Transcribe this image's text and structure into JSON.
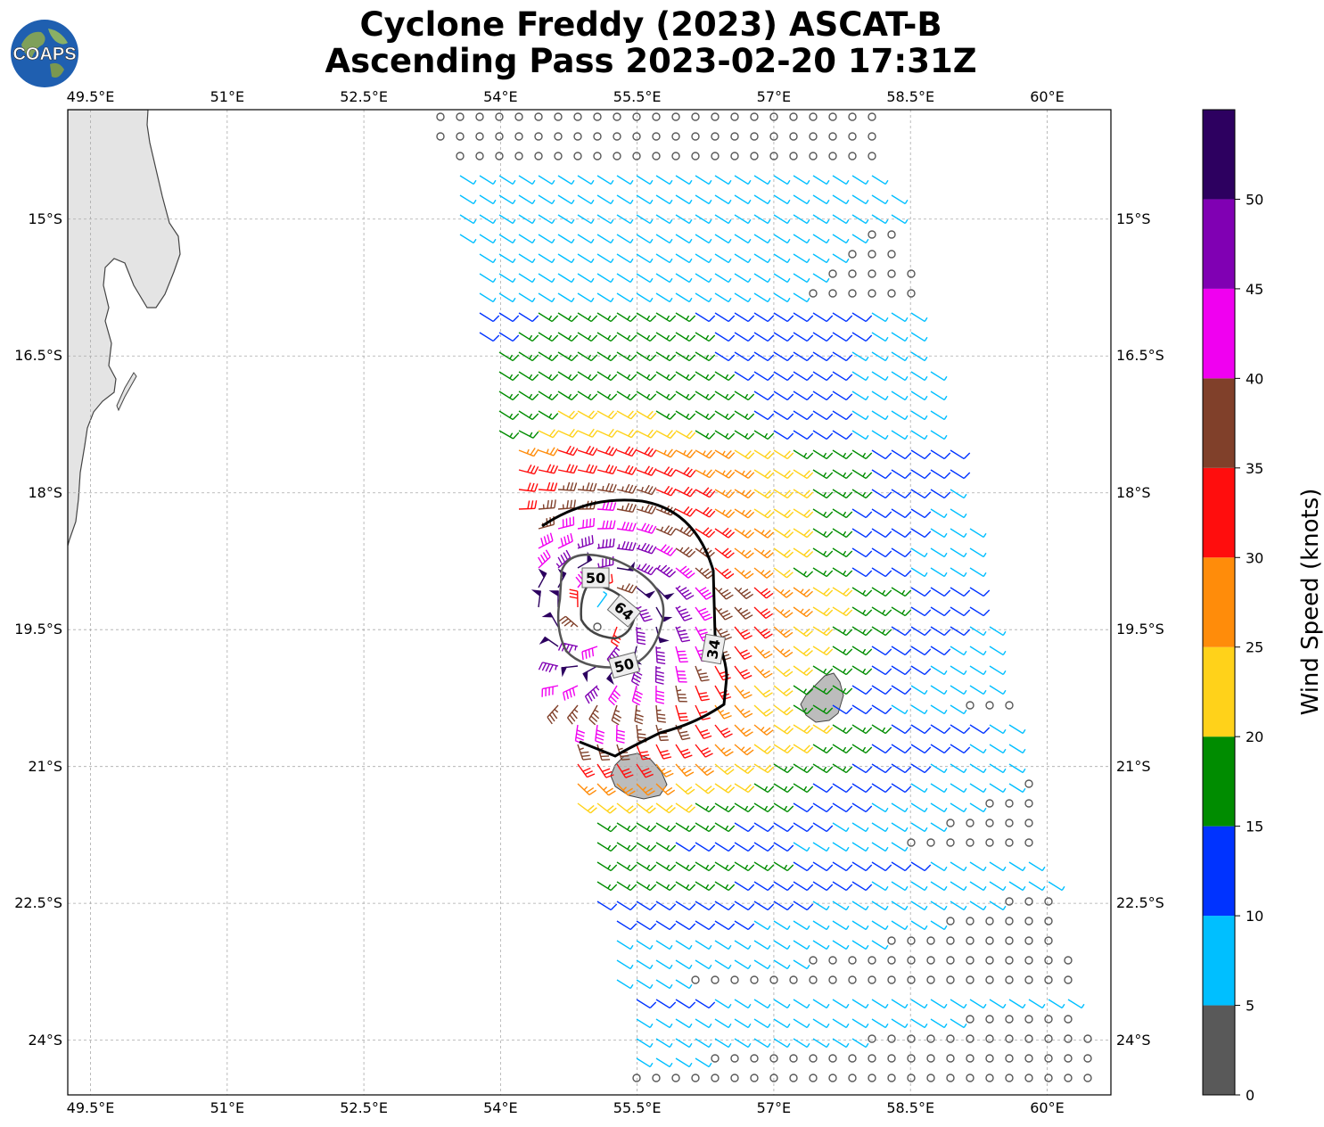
{
  "title": {
    "line1": "Cyclone Freddy (2023) ASCAT-B",
    "line2": "Ascending Pass 2023-02-20 17:31Z"
  },
  "logo": {
    "text": "COAPS",
    "icon": "globe-logo-icon"
  },
  "map": {
    "lon_range": [
      49.25,
      60.7
    ],
    "lat_range": [
      -24.6,
      -13.8
    ],
    "lon_ticks": [
      "49.5°E",
      "51°E",
      "52.5°E",
      "54°E",
      "55.5°E",
      "57°E",
      "58.5°E",
      "60°E"
    ],
    "lon_tick_values": [
      49.5,
      51,
      52.5,
      54,
      55.5,
      57,
      58.5,
      60
    ],
    "lat_ticks": [
      "15°S",
      "16.5°S",
      "18°S",
      "19.5°S",
      "21°S",
      "22.5°S",
      "24°S"
    ],
    "lat_tick_values": [
      -15,
      -16.5,
      -18,
      -19.5,
      -21,
      -22.5,
      -24
    ],
    "gridlines": true,
    "land": [
      "Madagascar",
      "Réunion",
      "Mauritius"
    ],
    "storm_center": {
      "lon": 55.1,
      "lat": -19.3
    },
    "wind_radius_labels": [
      "50",
      "64",
      "50",
      "34"
    ]
  },
  "colorbar": {
    "label": "Wind Speed (knots)",
    "ticks": [
      "0",
      "5",
      "10",
      "15",
      "20",
      "25",
      "30",
      "35",
      "40",
      "45",
      "50"
    ],
    "bins": [
      {
        "from": 0,
        "to": 5,
        "color": "#595959"
      },
      {
        "from": 5,
        "to": 10,
        "color": "#00bfff"
      },
      {
        "from": 10,
        "to": 15,
        "color": "#0033ff"
      },
      {
        "from": 15,
        "to": 20,
        "color": "#008c00"
      },
      {
        "from": 20,
        "to": 25,
        "color": "#ffd21a"
      },
      {
        "from": 25,
        "to": 30,
        "color": "#ff8c0a"
      },
      {
        "from": 30,
        "to": 35,
        "color": "#ff0d0d"
      },
      {
        "from": 35,
        "to": 40,
        "color": "#80402a"
      },
      {
        "from": 40,
        "to": 45,
        "color": "#f000f0"
      },
      {
        "from": 45,
        "to": 50,
        "color": "#8000b3"
      },
      {
        "from": 50,
        "to": 55,
        "color": "#2d0060"
      }
    ]
  }
}
